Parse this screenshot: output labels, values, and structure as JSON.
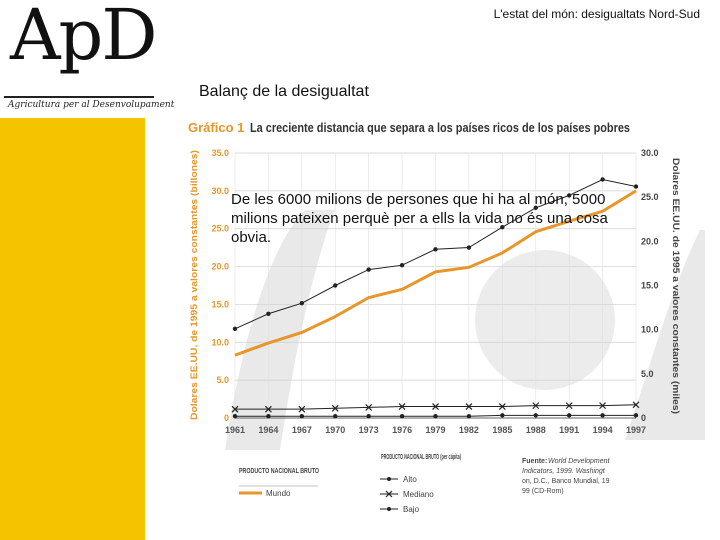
{
  "header": {
    "top_right": "L'estat del món: desigualtats Nord-Sud",
    "section_title": "Balanç de la desigualtat"
  },
  "logo": {
    "text": "ApD",
    "subtitle": "Agricultura per al Desenvolupament"
  },
  "overlay_text": "De les 6000 milions de persones que hi ha al món, 5000 milions pateixen perquè per a ells la vida no és una cosa obvia.",
  "colors": {
    "accent_yellow": "#f5c400",
    "mundo_line": "#e8962a",
    "alto_line": "#222222"
  },
  "chart_data": {
    "type": "line",
    "title_label": "Gráfico 1",
    "title": "La creciente distancia que separa a los países ricos de los países pobres",
    "ylabel": "Dolares EE.UU. de 1995 a valores constantes (billones)",
    "y2label": "Dolares EE.UU. de 1995 a valores constantes (miles)",
    "ylim": [
      0,
      35
    ],
    "y2lim": [
      0,
      30
    ],
    "yticks": [
      "0",
      "5.0",
      "10.0",
      "15.0",
      "20.0",
      "25.0",
      "30.0",
      "35.0"
    ],
    "y2ticks": [
      "0",
      "5.0",
      "10.0",
      "15.0",
      "20.0",
      "25.0",
      "30.0"
    ],
    "x": [
      "1961",
      "1964",
      "1967",
      "1970",
      "1973",
      "1976",
      "1979",
      "1982",
      "1985",
      "1988",
      "1991",
      "1994",
      "1997"
    ],
    "series": [
      {
        "name": "Mundo",
        "axis": "left",
        "values": [
          8.3,
          9.9,
          11.3,
          13.4,
          15.9,
          17.0,
          19.3,
          19.9,
          21.8,
          24.6,
          26.0,
          27.3,
          30.0
        ]
      },
      {
        "name": "Alto",
        "axis": "right",
        "values": [
          10.1,
          11.8,
          13.0,
          15.0,
          16.8,
          17.3,
          19.1,
          19.3,
          21.6,
          23.8,
          25.2,
          27.0,
          26.2
        ]
      },
      {
        "name": "Mediano",
        "axis": "right",
        "values": [
          1.0,
          1.0,
          1.0,
          1.1,
          1.2,
          1.3,
          1.3,
          1.3,
          1.3,
          1.4,
          1.4,
          1.4,
          1.5
        ]
      },
      {
        "name": "Bajo",
        "axis": "right",
        "values": [
          0.2,
          0.2,
          0.2,
          0.2,
          0.2,
          0.2,
          0.2,
          0.2,
          0.3,
          0.3,
          0.3,
          0.3,
          0.3
        ]
      }
    ],
    "legend": {
      "group1_title": "PRODUCTO NACIONAL BRUTO",
      "group2_title": "PRODUCTO NACIONAL BRUTO (per cápita)",
      "mundo": "Mundo",
      "alto": "Alto",
      "mediano": "Mediano",
      "bajo": "Bajo"
    },
    "source": {
      "label": "Fuente:",
      "text": "World Development Indicators, 1999. Washington, D.C., Banco Mundial, 1999 (CD-Rom)"
    }
  }
}
